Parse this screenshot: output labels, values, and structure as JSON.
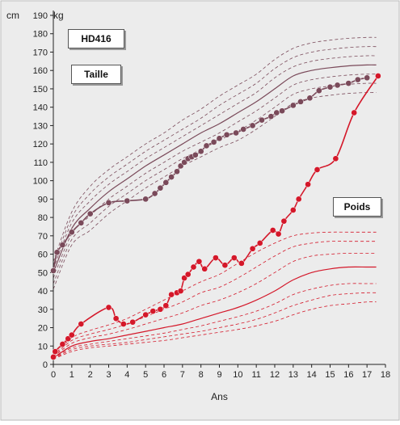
{
  "chart_data": {
    "type": "line",
    "title": "HD416",
    "xlabel": "Ans",
    "ylabel_left": "cm",
    "ylabel_right": "kg",
    "xlim": [
      0,
      18
    ],
    "ylim": [
      0,
      190
    ],
    "x_ticks": [
      0,
      1,
      2,
      3,
      4,
      5,
      6,
      7,
      8,
      9,
      10,
      11,
      12,
      13,
      14,
      15,
      16,
      17,
      18
    ],
    "y_ticks": [
      0,
      10,
      20,
      30,
      40,
      50,
      60,
      70,
      80,
      90,
      100,
      110,
      120,
      130,
      140,
      150,
      160,
      170,
      180,
      190
    ],
    "grid": false,
    "annotations": [
      "Taille",
      "Poids"
    ],
    "colors": {
      "taille": "#7a4a5a",
      "poids": "#d4182a",
      "background": "#ececec"
    },
    "reference_curves": {
      "taille": {
        "x": [
          0,
          1,
          2,
          3,
          4,
          5,
          6,
          7,
          8,
          9,
          10,
          11,
          12,
          13,
          14,
          15,
          16,
          17,
          17.5
        ],
        "median": [
          50,
          74,
          85,
          94,
          101,
          108,
          114,
          120,
          126,
          131,
          137,
          143,
          150,
          157,
          160,
          161.5,
          162.5,
          163,
          163
        ],
        "upper": [
          [
            52,
            77,
            89,
            98,
            105,
            112,
            118,
            124,
            130,
            136,
            142,
            148,
            156,
            162,
            165,
            166.5,
            167.5,
            168,
            168
          ],
          [
            54,
            80,
            93,
            102,
            109,
            116,
            122,
            128,
            134,
            141,
            147,
            153,
            161,
            167,
            170,
            171.5,
            172.5,
            173,
            173
          ],
          [
            56,
            83,
            97,
            106,
            113,
            120,
            126,
            133,
            139,
            146,
            152,
            158,
            166,
            172,
            175,
            176.5,
            177.5,
            178,
            178
          ]
        ],
        "lower": [
          [
            47,
            71,
            81,
            90,
            97,
            104,
            110,
            116,
            121,
            126,
            132,
            138,
            145,
            152,
            155,
            156.5,
            157.5,
            158,
            158
          ],
          [
            44,
            68,
            77,
            86,
            93,
            100,
            106,
            112,
            117,
            122,
            127,
            133,
            140,
            147,
            150,
            151.5,
            152.5,
            153,
            153
          ],
          [
            41,
            65,
            73,
            82,
            89,
            96,
            102,
            108,
            113,
            118,
            122,
            128,
            135,
            142,
            145,
            146.5,
            147.5,
            148,
            148
          ]
        ]
      },
      "poids": {
        "x": [
          0,
          1,
          2,
          3,
          4,
          5,
          6,
          7,
          8,
          9,
          10,
          11,
          12,
          13,
          14,
          15,
          16,
          17,
          17.5
        ],
        "median": [
          3.5,
          10,
          12.5,
          14,
          16,
          18,
          20,
          22,
          25,
          28,
          31,
          35,
          40,
          46,
          50,
          52,
          53,
          53,
          53
        ],
        "upper": [
          [
            4,
            11.5,
            14.5,
            16.5,
            19,
            22,
            25,
            28,
            32,
            35,
            39,
            44,
            50,
            56,
            59,
            60,
            60.5,
            60.5,
            60.5
          ],
          [
            4.3,
            13,
            16.5,
            19,
            22,
            26,
            30,
            34,
            39,
            42,
            47,
            53,
            59,
            64,
            66,
            67,
            67,
            67,
            67
          ],
          [
            4.6,
            14.5,
            18.5,
            21.5,
            25,
            30,
            35,
            40,
            45,
            49,
            55,
            61,
            66,
            70,
            71.5,
            72,
            72,
            72,
            72
          ]
        ],
        "lower": [
          [
            3.2,
            9,
            11,
            12.5,
            14,
            15.5,
            17,
            19,
            21,
            23.5,
            26,
            29,
            33,
            38,
            41,
            43,
            44,
            44,
            44
          ],
          [
            3,
            8,
            10,
            11,
            12,
            13.5,
            15,
            16.5,
            18,
            20,
            22,
            24.5,
            28,
            32,
            35,
            37.5,
            38.5,
            39,
            39
          ],
          [
            2.8,
            7,
            9,
            10,
            11,
            12,
            13,
            14.5,
            16,
            17.5,
            19,
            21,
            23.5,
            27,
            30,
            32,
            33,
            34,
            34
          ]
        ]
      }
    },
    "series": [
      {
        "name": "Taille",
        "x": [
          0,
          0.2,
          0.5,
          1,
          1.5,
          2,
          3,
          4,
          5,
          5.5,
          5.8,
          6.1,
          6.4,
          6.7,
          6.9,
          7.1,
          7.3,
          7.5,
          7.7,
          8,
          8.3,
          8.7,
          9,
          9.4,
          9.9,
          10.3,
          10.8,
          11.3,
          11.8,
          12.1,
          12.4,
          13,
          13.4,
          13.9,
          14.4,
          15,
          15.4,
          16,
          16.5,
          17
        ],
        "y": [
          51,
          61,
          65,
          72,
          77,
          82,
          88,
          89,
          90,
          93,
          96,
          99,
          102,
          105,
          108,
          110,
          112,
          113,
          114,
          116,
          119,
          121,
          123,
          125,
          126,
          128,
          130,
          133,
          135,
          137,
          138,
          141,
          143,
          145,
          149,
          151,
          152,
          153,
          155,
          156
        ]
      },
      {
        "name": "Poids",
        "x": [
          0,
          0.1,
          0.5,
          0.8,
          1,
          1.5,
          3,
          3.4,
          3.8,
          4.3,
          5,
          5.4,
          5.8,
          6.1,
          6.4,
          6.7,
          6.9,
          7.1,
          7.3,
          7.6,
          7.9,
          8.2,
          8.8,
          9.3,
          9.8,
          10.2,
          10.8,
          11.2,
          11.9,
          12.2,
          12.5,
          13,
          13.3,
          13.8,
          14.3,
          15.3,
          16.3,
          17.6
        ],
        "y": [
          4,
          7,
          11,
          14,
          16,
          22,
          31,
          25,
          22,
          23,
          27,
          29,
          30,
          32,
          38,
          39,
          40,
          47,
          49,
          53,
          56,
          52,
          58,
          54,
          58,
          55,
          63,
          66,
          73,
          71,
          78,
          84,
          90,
          98,
          106,
          112,
          137,
          157
        ]
      }
    ]
  }
}
